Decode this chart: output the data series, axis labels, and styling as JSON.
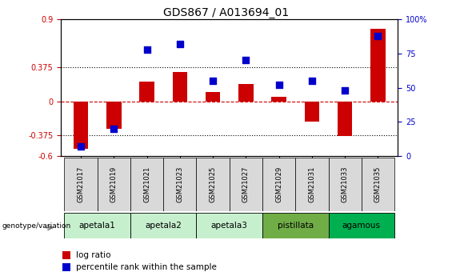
{
  "title": "GDS867 / A013694_01",
  "samples": [
    "GSM21017",
    "GSM21019",
    "GSM21021",
    "GSM21023",
    "GSM21025",
    "GSM21027",
    "GSM21029",
    "GSM21031",
    "GSM21033",
    "GSM21035"
  ],
  "log_ratio": [
    -0.52,
    -0.3,
    0.22,
    0.32,
    0.1,
    0.19,
    0.05,
    -0.22,
    -0.38,
    0.8
  ],
  "percentile_rank": [
    7,
    20,
    78,
    82,
    55,
    70,
    52,
    55,
    48,
    88
  ],
  "groups": [
    {
      "label": "apetala1",
      "color": "#c6efce",
      "indices": [
        0,
        1
      ]
    },
    {
      "label": "apetala2",
      "color": "#c6efce",
      "indices": [
        2,
        3
      ]
    },
    {
      "label": "apetala3",
      "color": "#c6efce",
      "indices": [
        4,
        5
      ]
    },
    {
      "label": "pistillata",
      "color": "#70ad47",
      "indices": [
        6,
        7
      ]
    },
    {
      "label": "agamous",
      "color": "#00b050",
      "indices": [
        8,
        9
      ]
    }
  ],
  "ylim_left": [
    -0.6,
    0.9
  ],
  "ylim_right": [
    0,
    100
  ],
  "yticks_left": [
    -0.6,
    -0.375,
    0,
    0.375,
    0.9
  ],
  "yticks_right": [
    0,
    25,
    50,
    75,
    100
  ],
  "ytick_labels_right": [
    "0",
    "25",
    "50",
    "75",
    "100%"
  ],
  "hlines": [
    0.375,
    -0.375
  ],
  "bar_color_red": "#cc0000",
  "dot_color_blue": "#0000cc",
  "zero_line_color": "#cc0000",
  "sample_box_color": "#d9d9d9",
  "background_color": "#ffffff",
  "title_fontsize": 10,
  "legend_items": [
    {
      "color": "#cc0000",
      "label": "log ratio"
    },
    {
      "color": "#0000cc",
      "label": "percentile rank within the sample"
    }
  ]
}
